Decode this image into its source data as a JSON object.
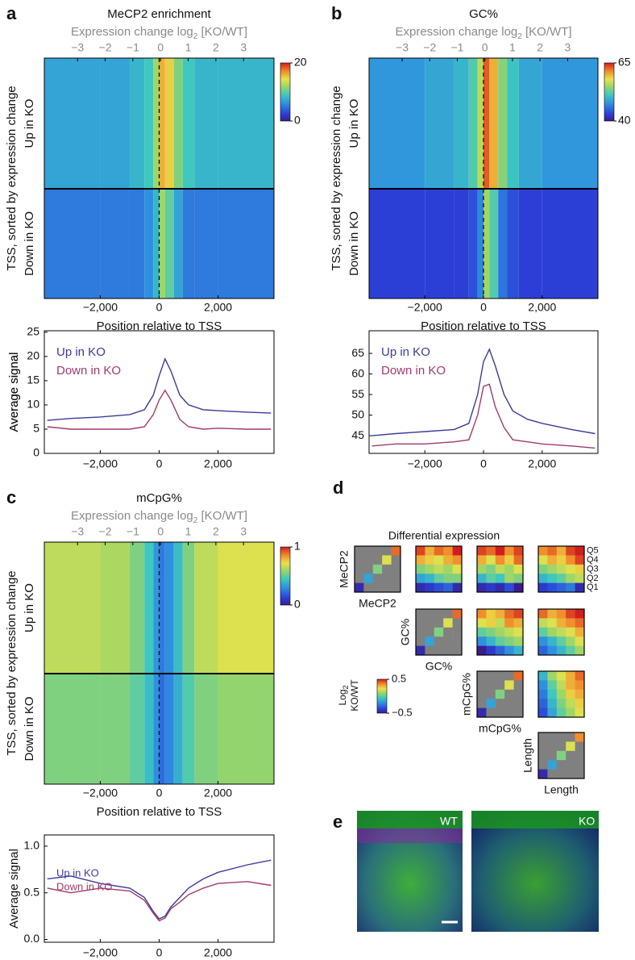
{
  "chart_data": [
    {
      "type": "heatmap",
      "letter": "a",
      "title": "MeCP2 enrichment",
      "x2label": [
        "Expression change log",
        "2",
        " [KO/WT]"
      ],
      "x2lim": [
        -4.2,
        4.1
      ],
      "x2ticks": [
        {
          "value": -3,
          "label": "−3"
        },
        {
          "value": -2,
          "label": "−2"
        },
        {
          "value": -1,
          "label": "−1"
        },
        0,
        1,
        2,
        3
      ],
      "ylabel": "TSS, sorted by expression change",
      "xlabel": "Position relative to TSS",
      "xlim": [
        -3900,
        3900
      ],
      "xticks": [
        {
          "value": -2000,
          "label": "−2,000"
        },
        0,
        {
          "value": 2000,
          "label": "2,000"
        }
      ],
      "vline": 0,
      "bins": [
        -3900,
        -2000,
        -1000,
        -500,
        -200,
        0,
        200,
        500,
        800,
        1200,
        2000,
        3900
      ],
      "rows": [
        {
          "name": "Up in KO",
          "values": [
            7,
            7,
            8,
            9,
            12,
            16,
            15,
            11,
            9,
            8,
            8
          ]
        },
        {
          "name": "Down in KO",
          "values": [
            5,
            5,
            5,
            6,
            8,
            12,
            10,
            7,
            5,
            5,
            5
          ]
        }
      ],
      "clim": [
        0,
        20
      ],
      "cticks": [
        0,
        20
      ]
    },
    {
      "type": "line",
      "ylabel": "Average signal",
      "xlim": [
        -3900,
        3900
      ],
      "xticks": [
        {
          "value": -2000,
          "label": "−2,000"
        },
        0,
        {
          "value": 2000,
          "label": "2,000"
        }
      ],
      "ylim": [
        0,
        25.3
      ],
      "yticks": [
        0,
        5,
        10,
        15,
        20,
        25
      ],
      "x": [
        -3800,
        -3000,
        -2000,
        -1000,
        -500,
        -200,
        0,
        200,
        400,
        700,
        1000,
        1500,
        2000,
        3000,
        3800
      ],
      "series": [
        {
          "name": "Up in KO",
          "color": "#3b3b9a",
          "values": [
            6.8,
            7.2,
            7.5,
            8,
            9,
            12,
            16,
            19.5,
            17,
            12,
            10,
            9,
            8.8,
            8.5,
            8.3
          ]
        },
        {
          "name": "Down in KO",
          "color": "#a03a6e",
          "values": [
            5.5,
            5,
            5,
            5,
            5.5,
            8,
            11,
            13,
            11,
            7,
            5.5,
            5,
            5.2,
            5,
            5
          ]
        }
      ]
    },
    {
      "type": "heatmap",
      "letter": "b",
      "title": "GC%",
      "x2label": [
        "Expression change log",
        "2",
        " [KO/WT]"
      ],
      "x2lim": [
        -4.2,
        4.1
      ],
      "x2ticks": [
        {
          "value": -3,
          "label": "−3"
        },
        {
          "value": -2,
          "label": "−2"
        },
        {
          "value": -1,
          "label": "−1"
        },
        0,
        1,
        2,
        3
      ],
      "ylabel": "TSS, sorted by expression change",
      "xlabel": "Position relative to TSS",
      "xlim": [
        -3900,
        3900
      ],
      "xticks": [
        {
          "value": -2000,
          "label": "−2,000"
        },
        0,
        {
          "value": 2000,
          "label": "2,000"
        }
      ],
      "vline": 0,
      "bins": [
        -3900,
        -2000,
        -1000,
        -500,
        -200,
        0,
        200,
        500,
        800,
        1200,
        2000,
        3900
      ],
      "rows": [
        {
          "name": "Up in KO",
          "values": [
            48,
            49,
            50,
            52,
            56,
            63,
            60,
            54,
            51,
            49,
            48
          ]
        },
        {
          "name": "Down in KO",
          "values": [
            43,
            43,
            43,
            44,
            47,
            55,
            52,
            46,
            44,
            43,
            43
          ]
        }
      ],
      "clim": [
        40,
        65
      ],
      "cticks": [
        40,
        65
      ]
    },
    {
      "type": "line",
      "ylabel": "Average signal",
      "xlim": [
        -3900,
        3900
      ],
      "xticks": [
        {
          "value": -2000,
          "label": "−2,000"
        },
        0,
        {
          "value": 2000,
          "label": "2,000"
        }
      ],
      "ylim": [
        40.7,
        70.5
      ],
      "yticks": [
        45,
        50,
        55,
        60,
        65
      ],
      "x": [
        -3800,
        -3000,
        -2000,
        -1000,
        -500,
        -200,
        0,
        200,
        400,
        700,
        1000,
        1500,
        2000,
        3000,
        3800
      ],
      "series": [
        {
          "name": "Up in KO",
          "color": "#3b3b9a",
          "values": [
            45,
            45.5,
            46,
            46.5,
            48,
            55,
            63,
            66,
            62,
            55,
            51,
            49,
            48,
            46.5,
            45.5
          ]
        },
        {
          "name": "Down in KO",
          "color": "#a03a6e",
          "values": [
            42.5,
            43,
            43,
            43.5,
            44,
            50,
            57,
            57.5,
            52,
            47,
            44,
            43.5,
            43,
            42.5,
            42
          ]
        }
      ]
    },
    {
      "type": "heatmap",
      "letter": "c",
      "title": "mCpG%",
      "x2label": [
        "Expression change log",
        "2",
        " [KO/WT]"
      ],
      "x2lim": [
        -4.2,
        4.1
      ],
      "x2ticks": [
        {
          "value": -3,
          "label": "−3"
        },
        {
          "value": -2,
          "label": "−2"
        },
        {
          "value": -1,
          "label": "−1"
        },
        0,
        1,
        2,
        3
      ],
      "ylabel": "TSS, sorted by expression change",
      "xlabel": "Position relative to TSS",
      "xlim": [
        -3900,
        3900
      ],
      "xticks": [
        {
          "value": -2000,
          "label": "−2,000"
        },
        0,
        {
          "value": 2000,
          "label": "2,000"
        }
      ],
      "vline": 0,
      "bins": [
        -3900,
        -2000,
        -1000,
        -500,
        -200,
        0,
        200,
        500,
        800,
        1200,
        2000,
        3900
      ],
      "rows": [
        {
          "name": "Up in KO",
          "values": [
            0.65,
            0.62,
            0.55,
            0.45,
            0.32,
            0.25,
            0.3,
            0.42,
            0.55,
            0.65,
            0.7
          ]
        },
        {
          "name": "Down in KO",
          "values": [
            0.55,
            0.55,
            0.5,
            0.42,
            0.3,
            0.22,
            0.28,
            0.38,
            0.48,
            0.55,
            0.58
          ]
        }
      ],
      "clim": [
        0,
        1
      ],
      "cticks": [
        0,
        1
      ]
    },
    {
      "type": "line",
      "ylabel": "Average signal",
      "xlim": [
        -3900,
        3900
      ],
      "xticks": [
        {
          "value": -2000,
          "label": "−2,000"
        },
        0,
        {
          "value": 2000,
          "label": "2,000"
        }
      ],
      "ylim": [
        -0.03,
        1.12
      ],
      "yticks": [
        {
          "value": 0,
          "label": "0.0"
        },
        0.5,
        {
          "value": 1,
          "label": "1.0"
        }
      ],
      "x": [
        -3800,
        -3000,
        -2000,
        -1000,
        -500,
        -200,
        0,
        200,
        400,
        700,
        1000,
        1500,
        2000,
        3000,
        3800
      ],
      "series": [
        {
          "name": "Up in KO",
          "color": "#3b3b9a",
          "values": [
            0.65,
            0.68,
            0.6,
            0.55,
            0.45,
            0.3,
            0.22,
            0.25,
            0.35,
            0.45,
            0.55,
            0.65,
            0.72,
            0.8,
            0.85
          ]
        },
        {
          "name": "Down in KO",
          "color": "#a03a6e",
          "values": [
            0.55,
            0.5,
            0.55,
            0.52,
            0.42,
            0.28,
            0.2,
            0.23,
            0.33,
            0.4,
            0.48,
            0.55,
            0.6,
            0.62,
            0.58
          ]
        }
      ]
    },
    {
      "type": "matrix",
      "letter": "d",
      "title": "Differential expression",
      "variables": [
        "MeCP2",
        "GC%",
        "mCpG%",
        "Length"
      ],
      "quantiles": [
        "Q5",
        "Q4",
        "Q3",
        "Q2",
        "Q1"
      ],
      "colorbar_label": [
        "Log",
        "2",
        "KO/WT"
      ],
      "clim": [
        -0.5,
        0.5
      ],
      "cticks": [
        {
          "value": -0.5,
          "label": "−0.5"
        },
        0.5
      ],
      "matrices": [
        {
          "row": 0,
          "col": 0,
          "values": [
            [
              null,
              null,
              null,
              null,
              0.4
            ],
            [
              null,
              null,
              null,
              0.2,
              null
            ],
            [
              null,
              null,
              0.05,
              null,
              null
            ],
            [
              null,
              -0.15,
              null,
              null,
              null
            ],
            [
              -0.45,
              null,
              null,
              null,
              null
            ]
          ]
        },
        {
          "row": 0,
          "col": 1,
          "values": [
            [
              0.45,
              0.3,
              0.4,
              0.35,
              0.5
            ],
            [
              0.3,
              0.25,
              0.2,
              0.3,
              0.35
            ],
            [
              0.05,
              0.1,
              0.15,
              0.1,
              0.2
            ],
            [
              -0.15,
              -0.1,
              0,
              0.05,
              0.05
            ],
            [
              -0.45,
              -0.4,
              -0.35,
              -0.3,
              -0.45
            ]
          ]
        },
        {
          "row": 0,
          "col": 2,
          "values": [
            [
              0.45,
              0.4,
              0.5,
              0.35,
              0.45
            ],
            [
              0.3,
              0.2,
              0.35,
              0.25,
              0.4
            ],
            [
              0.1,
              0.05,
              0.15,
              0.1,
              0.2
            ],
            [
              -0.1,
              0,
              -0.05,
              0.1,
              0.05
            ],
            [
              -0.45,
              -0.4,
              -0.45,
              -0.35,
              -0.5
            ]
          ]
        },
        {
          "row": 0,
          "col": 3,
          "values": [
            [
              0.35,
              0.4,
              0.3,
              0.45,
              0.5
            ],
            [
              0.2,
              0.3,
              0.25,
              0.35,
              0.45
            ],
            [
              0.05,
              0.1,
              0.15,
              0.2,
              0.25
            ],
            [
              -0.1,
              -0.05,
              0,
              0.1,
              0.15
            ],
            [
              -0.4,
              -0.35,
              -0.3,
              -0.25,
              -0.45
            ]
          ]
        },
        {
          "row": 1,
          "col": 1,
          "values": [
            [
              null,
              null,
              null,
              null,
              0.4
            ],
            [
              null,
              null,
              null,
              0.2,
              null
            ],
            [
              null,
              null,
              0.05,
              null,
              null
            ],
            [
              null,
              -0.15,
              null,
              null,
              null
            ],
            [
              -0.45,
              null,
              null,
              null,
              null
            ]
          ]
        },
        {
          "row": 1,
          "col": 2,
          "values": [
            [
              0.35,
              0.25,
              0.3,
              0.4,
              0.45
            ],
            [
              0.2,
              0.25,
              0.15,
              0.35,
              0.3
            ],
            [
              0,
              0.05,
              0.1,
              0.15,
              0.2
            ],
            [
              -0.2,
              -0.1,
              0,
              0.05,
              0.1
            ],
            [
              -0.5,
              -0.4,
              -0.3,
              -0.2,
              -0.1
            ]
          ]
        },
        {
          "row": 1,
          "col": 3,
          "values": [
            [
              0.4,
              0.3,
              0.35,
              0.45,
              0.5
            ],
            [
              0.15,
              0.2,
              0.3,
              0.35,
              0.4
            ],
            [
              0,
              0.1,
              0.15,
              0.2,
              0.3
            ],
            [
              -0.2,
              -0.1,
              0,
              0.1,
              0.2
            ],
            [
              -0.3,
              -0.2,
              -0.1,
              0,
              0.1
            ]
          ]
        },
        {
          "row": 2,
          "col": 2,
          "values": [
            [
              null,
              null,
              null,
              null,
              0.4
            ],
            [
              null,
              null,
              null,
              0.2,
              null
            ],
            [
              null,
              null,
              0.05,
              null,
              null
            ],
            [
              null,
              -0.15,
              null,
              null,
              null
            ],
            [
              -0.45,
              null,
              null,
              null,
              null
            ]
          ]
        },
        {
          "row": 2,
          "col": 3,
          "values": [
            [
              -0.1,
              0.1,
              0.2,
              0.3,
              0.4
            ],
            [
              -0.2,
              0,
              0.15,
              0.3,
              0.35
            ],
            [
              -0.25,
              -0.05,
              0.1,
              0.25,
              0.3
            ],
            [
              -0.3,
              -0.1,
              0.05,
              0.15,
              0.25
            ],
            [
              -0.35,
              -0.15,
              0,
              0.1,
              0.2
            ]
          ]
        },
        {
          "row": 3,
          "col": 3,
          "values": [
            [
              null,
              null,
              null,
              null,
              0.35
            ],
            [
              null,
              null,
              null,
              0.2,
              null
            ],
            [
              null,
              null,
              0.05,
              null,
              null
            ],
            [
              null,
              -0.15,
              null,
              null,
              null
            ],
            [
              -0.45,
              null,
              null,
              null,
              null
            ]
          ]
        }
      ]
    }
  ],
  "panel_e": {
    "letter": "e",
    "labels": [
      "WT",
      "KO"
    ]
  }
}
